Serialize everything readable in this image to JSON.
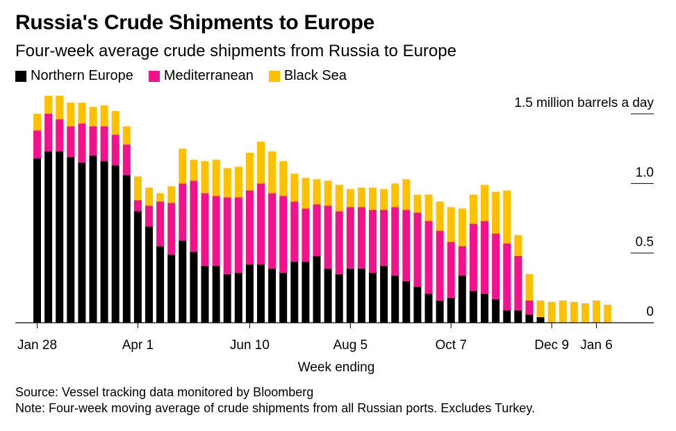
{
  "title": "Russia's Crude Shipments to Europe",
  "subtitle": "Four-week average crude shipments from Russia to Europe",
  "source": "Source: Vessel tracking data monitored by Bloomberg",
  "note": "Note: Four-week moving average of crude shipments from all Russian ports. Excludes Turkey.",
  "chart_data": {
    "type": "bar",
    "stacked": true,
    "xlabel": "Week ending",
    "ylabel": "1.5 million barrels a day",
    "ylim": [
      0,
      1.5
    ],
    "yticks": [
      {
        "value": 0,
        "label": "0"
      },
      {
        "value": 0.5,
        "label": "0.5"
      },
      {
        "value": 1.0,
        "label": "1.0"
      },
      {
        "value": 1.5,
        "label": "1.5 million barrels a day"
      }
    ],
    "xticks": [
      {
        "index": 0,
        "label": "Jan 28"
      },
      {
        "index": 9,
        "label": "Apr 1"
      },
      {
        "index": 19,
        "label": "Jun 10"
      },
      {
        "index": 28,
        "label": "Aug 5"
      },
      {
        "index": 37,
        "label": "Oct 7"
      },
      {
        "index": 46,
        "label": "Dec 9"
      },
      {
        "index": 50,
        "label": "Jan 6"
      }
    ],
    "legend_position": "top-left",
    "series": [
      {
        "name": "Northern Europe",
        "color": "#000000",
        "values": [
          1.18,
          1.23,
          1.23,
          1.19,
          1.15,
          1.2,
          1.16,
          1.13,
          1.06,
          0.8,
          0.69,
          0.55,
          0.49,
          0.59,
          0.51,
          0.41,
          0.41,
          0.35,
          0.36,
          0.42,
          0.42,
          0.39,
          0.36,
          0.44,
          0.44,
          0.48,
          0.39,
          0.35,
          0.39,
          0.39,
          0.36,
          0.41,
          0.34,
          0.3,
          0.26,
          0.21,
          0.16,
          0.18,
          0.34,
          0.23,
          0.21,
          0.17,
          0.09,
          0.09,
          0.06,
          0.04,
          0.0,
          0.0,
          0.0,
          0.0,
          0.0,
          0.0
        ]
      },
      {
        "name": "Mediterranean",
        "color": "#f2138c",
        "values": [
          0.2,
          0.27,
          0.23,
          0.22,
          0.28,
          0.21,
          0.25,
          0.22,
          0.22,
          0.08,
          0.15,
          0.32,
          0.37,
          0.41,
          0.51,
          0.52,
          0.5,
          0.55,
          0.54,
          0.53,
          0.58,
          0.54,
          0.55,
          0.43,
          0.38,
          0.37,
          0.45,
          0.45,
          0.44,
          0.44,
          0.45,
          0.4,
          0.49,
          0.51,
          0.53,
          0.52,
          0.5,
          0.4,
          0.21,
          0.48,
          0.52,
          0.47,
          0.48,
          0.39,
          0.1,
          0.0,
          0.0,
          0.0,
          0.0,
          0.0,
          0.0,
          0.0
        ]
      },
      {
        "name": "Black Sea",
        "color": "#ffc000",
        "values": [
          0.12,
          0.13,
          0.17,
          0.17,
          0.15,
          0.14,
          0.15,
          0.17,
          0.13,
          0.17,
          0.13,
          0.06,
          0.12,
          0.25,
          0.15,
          0.23,
          0.26,
          0.21,
          0.22,
          0.27,
          0.3,
          0.3,
          0.25,
          0.2,
          0.22,
          0.18,
          0.18,
          0.19,
          0.13,
          0.14,
          0.16,
          0.15,
          0.17,
          0.22,
          0.13,
          0.19,
          0.21,
          0.25,
          0.27,
          0.21,
          0.26,
          0.3,
          0.38,
          0.15,
          0.19,
          0.12,
          0.15,
          0.16,
          0.15,
          0.14,
          0.16,
          0.13
        ]
      }
    ]
  }
}
